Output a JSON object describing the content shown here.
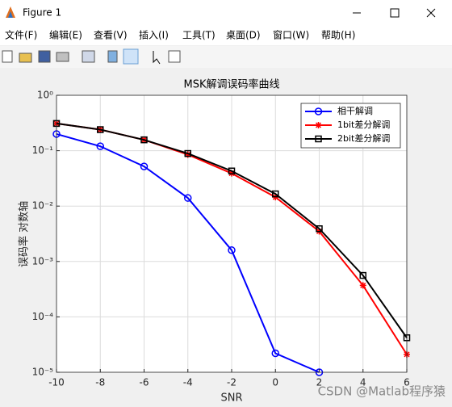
{
  "window": {
    "title": "Figure 1",
    "menu": [
      "文件(F)",
      "编辑(E)",
      "查看(V)",
      "插入(I)",
      "工具(T)",
      "桌面(D)",
      "窗口(W)",
      "帮助(H)"
    ]
  },
  "watermark": "CSDN @Matlab程序猿",
  "chart_data": {
    "type": "line",
    "title": "MSK解调误码率曲线",
    "x_label": "SNR",
    "y_label": "误码率 对数轴",
    "x": [
      -10,
      -8,
      -6,
      -4,
      -2,
      0,
      2,
      4,
      6
    ],
    "series": [
      {
        "name": "相干解调",
        "color": "#0000ff",
        "marker": "circle",
        "values": [
          0.2,
          0.12,
          0.052,
          0.014,
          0.0016,
          2.2e-05,
          1e-05,
          null,
          null
        ]
      },
      {
        "name": "1bit差分解调",
        "color": "#ff0000",
        "marker": "asterisk",
        "values": [
          0.31,
          0.24,
          0.157,
          0.085,
          0.039,
          0.0145,
          0.0035,
          0.00037,
          2.1e-05
        ]
      },
      {
        "name": "2bit差分解调",
        "color": "#000000",
        "marker": "square",
        "values": [
          0.31,
          0.24,
          0.157,
          0.089,
          0.043,
          0.0166,
          0.0039,
          0.00056,
          4.2e-05
        ]
      }
    ],
    "xlim": [
      -10,
      6
    ],
    "xticks": [
      -10,
      -8,
      -6,
      -4,
      -2,
      0,
      2,
      4,
      6
    ],
    "ylim": [
      1e-05,
      1
    ],
    "y_scale": "log",
    "yticks": [
      {
        "value": 1e-05,
        "label": "10⁻⁵"
      },
      {
        "value": 0.0001,
        "label": "10⁻⁴"
      },
      {
        "value": 0.001,
        "label": "10⁻³"
      },
      {
        "value": 0.01,
        "label": "10⁻²"
      },
      {
        "value": 0.1,
        "label": "10⁻¹"
      },
      {
        "value": 1,
        "label": "10⁰"
      }
    ],
    "grid": true,
    "legend": "northeast"
  }
}
